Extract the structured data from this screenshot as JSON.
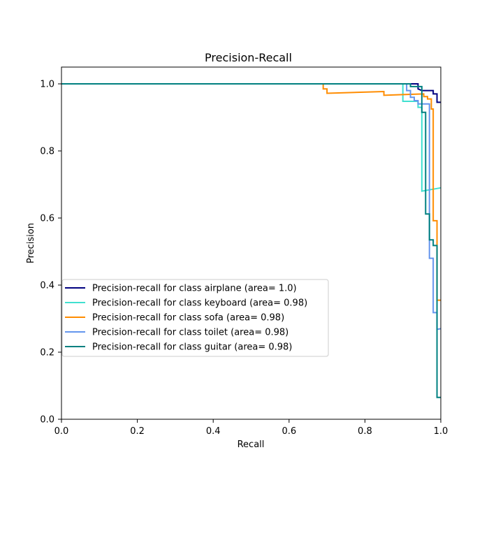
{
  "chart_data": {
    "type": "line",
    "title": "Precision-Recall",
    "xlabel": "Recall",
    "ylabel": "Precision",
    "xlim": [
      0.0,
      1.0
    ],
    "ylim": [
      0.0,
      1.05
    ],
    "xticks": [
      "0.0",
      "0.2",
      "0.4",
      "0.6",
      "0.8",
      "1.0"
    ],
    "yticks": [
      "0.0",
      "0.2",
      "0.4",
      "0.6",
      "0.8",
      "1.0"
    ],
    "grid": false,
    "legend_position": "center-left",
    "series": [
      {
        "name": "Precision-recall for class airplane (area= 1.0)",
        "color": "#000080",
        "points": [
          [
            0.0,
            1.0
          ],
          [
            0.93,
            1.0
          ],
          [
            0.94,
            1.0
          ],
          [
            0.94,
            0.985
          ],
          [
            0.95,
            0.98
          ],
          [
            0.98,
            0.98
          ],
          [
            0.98,
            0.97
          ],
          [
            0.99,
            0.97
          ],
          [
            0.99,
            0.945
          ],
          [
            1.0,
            0.945
          ]
        ]
      },
      {
        "name": "Precision-recall for class keyboard (area= 0.98)",
        "color": "#40e0d0",
        "points": [
          [
            0.0,
            1.0
          ],
          [
            0.9,
            1.0
          ],
          [
            0.9,
            0.948
          ],
          [
            0.94,
            0.948
          ],
          [
            0.94,
            0.93
          ],
          [
            0.95,
            0.93
          ],
          [
            0.95,
            0.68
          ],
          [
            1.0,
            0.69
          ]
        ]
      },
      {
        "name": "Precision-recall for class sofa (area= 0.98)",
        "color": "#ff8c00",
        "points": [
          [
            0.0,
            1.0
          ],
          [
            0.69,
            1.0
          ],
          [
            0.69,
            0.985
          ],
          [
            0.7,
            0.985
          ],
          [
            0.7,
            0.972
          ],
          [
            0.85,
            0.977
          ],
          [
            0.85,
            0.966
          ],
          [
            0.9,
            0.968
          ],
          [
            0.955,
            0.97
          ],
          [
            0.955,
            0.962
          ],
          [
            0.965,
            0.962
          ],
          [
            0.965,
            0.955
          ],
          [
            0.975,
            0.955
          ],
          [
            0.975,
            0.925
          ],
          [
            0.98,
            0.925
          ],
          [
            0.98,
            0.592
          ],
          [
            0.99,
            0.592
          ],
          [
            0.99,
            0.355
          ],
          [
            1.0,
            0.355
          ]
        ]
      },
      {
        "name": "Precision-recall for class toilet (area= 0.98)",
        "color": "#6495ed",
        "points": [
          [
            0.0,
            1.0
          ],
          [
            0.91,
            1.0
          ],
          [
            0.91,
            0.98
          ],
          [
            0.92,
            0.98
          ],
          [
            0.92,
            0.96
          ],
          [
            0.93,
            0.96
          ],
          [
            0.93,
            0.95
          ],
          [
            0.94,
            0.95
          ],
          [
            0.94,
            0.94
          ],
          [
            0.97,
            0.94
          ],
          [
            0.97,
            0.48
          ],
          [
            0.98,
            0.48
          ],
          [
            0.98,
            0.318
          ],
          [
            0.99,
            0.318
          ],
          [
            0.99,
            0.268
          ],
          [
            1.0,
            0.27
          ]
        ]
      },
      {
        "name": "Precision-recall for class guitar (area= 0.98)",
        "color": "#008080",
        "points": [
          [
            0.0,
            1.0
          ],
          [
            0.92,
            1.0
          ],
          [
            0.92,
            0.992
          ],
          [
            0.95,
            0.992
          ],
          [
            0.95,
            0.915
          ],
          [
            0.96,
            0.915
          ],
          [
            0.96,
            0.612
          ],
          [
            0.97,
            0.612
          ],
          [
            0.97,
            0.535
          ],
          [
            0.98,
            0.535
          ],
          [
            0.98,
            0.518
          ],
          [
            0.99,
            0.518
          ],
          [
            0.99,
            0.065
          ],
          [
            1.0,
            0.065
          ]
        ]
      }
    ]
  }
}
